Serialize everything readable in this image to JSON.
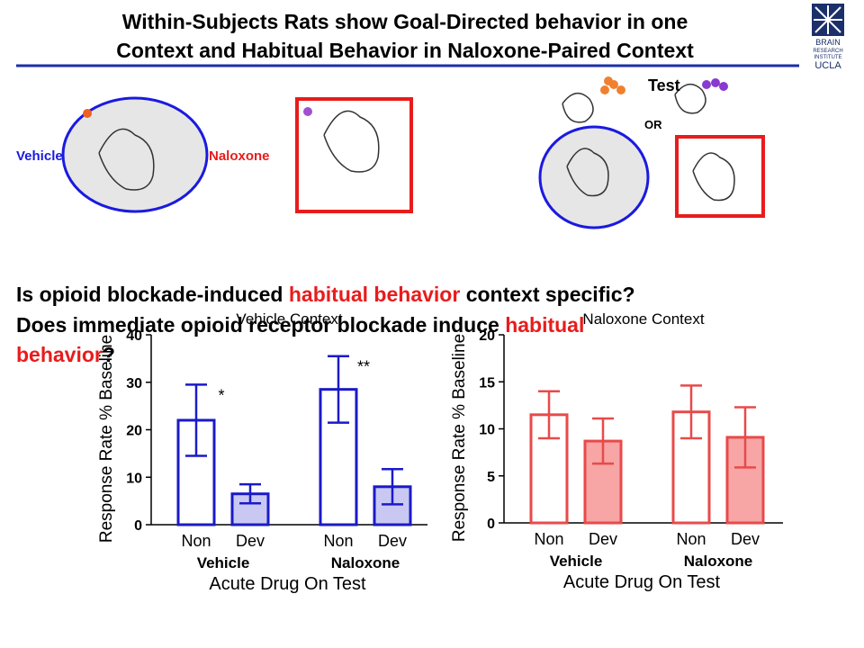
{
  "title": [
    "Within-Subjects Rats show Goal-Directed behavior in one",
    "Context and Habitual Behavior in Naloxone-Paired Context"
  ],
  "logo": [
    "BRAIN",
    "RESEARCH",
    "INSTITUTE",
    "UCLA"
  ],
  "diagram": {
    "vehicle": "Vehicle",
    "naloxone": "Naloxone",
    "test": "Test",
    "or": "OR"
  },
  "questions": [
    [
      "Is opioid blockade-induced ",
      "habitual behavior",
      " context specific?"
    ],
    [
      "Does immediate opioid receptor blockade induce ",
      "habitual"
    ],
    [
      "behavior",
      "?"
    ]
  ],
  "chart_data": [
    {
      "type": "bar",
      "title": "Vehicle Context",
      "y_label": "Response Rate % Baseline",
      "x_label": "Acute Drug On Test",
      "categories": [
        "Non",
        "Dev",
        "Non",
        "Dev"
      ],
      "groups": [
        "Vehicle",
        "Naloxone"
      ],
      "values": [
        22,
        6.5,
        28.5,
        8
      ],
      "errors": [
        7.5,
        2,
        7,
        3.7
      ],
      "colors": [
        "#ffffff",
        "#c8c8f2",
        "#ffffff",
        "#c8c8f2"
      ],
      "edge_color": "#1a1ac8",
      "annotations": [
        "*",
        "**"
      ],
      "ylim": [
        0,
        40
      ],
      "yticks": [
        0,
        10,
        20,
        30,
        40
      ]
    },
    {
      "type": "bar",
      "title": "Naloxone Context",
      "y_label": "Response Rate % Baseline",
      "x_label": "Acute Drug On Test",
      "categories": [
        "Non",
        "Dev",
        "Non",
        "Dev"
      ],
      "groups": [
        "Vehicle",
        "Naloxone"
      ],
      "values": [
        11.5,
        8.7,
        11.8,
        9.1
      ],
      "errors": [
        2.5,
        2.4,
        2.8,
        3.2
      ],
      "colors": [
        "#ffffff",
        "#f7a5a5",
        "#ffffff",
        "#f7a5a5"
      ],
      "edge_color": "#e84a4a",
      "annotations": [],
      "ylim": [
        0,
        20
      ],
      "yticks": [
        0,
        5,
        10,
        15,
        20
      ]
    }
  ]
}
